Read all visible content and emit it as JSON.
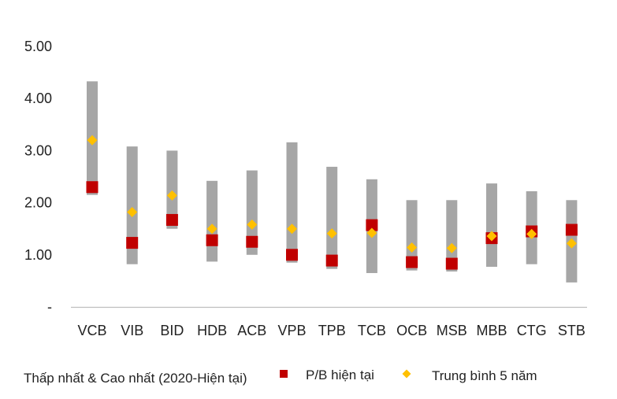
{
  "chart_data": {
    "type": "range-dot",
    "title": "",
    "xlabel": "",
    "ylabel": "",
    "ylim": [
      0,
      5
    ],
    "y_ticks": [
      0,
      1,
      2,
      3,
      4,
      5
    ],
    "y_tick_labels": [
      "-",
      "1.00",
      "2.00",
      "3.00",
      "4.00",
      "5.00"
    ],
    "categories": [
      "VCB",
      "VIB",
      "BID",
      "HDB",
      "ACB",
      "VPB",
      "TPB",
      "TCB",
      "OCB",
      "MSB",
      "MBB",
      "CTG",
      "STB"
    ],
    "series": [
      {
        "name": "Thấp nhất & Cao nhất (2020-Hiện tại)",
        "kind": "range",
        "low": [
          2.15,
          0.82,
          1.5,
          0.87,
          1.0,
          0.85,
          0.73,
          0.65,
          0.7,
          0.68,
          0.77,
          0.82,
          0.47
        ],
        "high": [
          4.33,
          3.08,
          3.0,
          2.42,
          2.62,
          3.16,
          2.69,
          2.45,
          2.05,
          2.05,
          2.37,
          2.22,
          2.05
        ]
      },
      {
        "name": "P/B hiện tại",
        "kind": "square",
        "values": [
          2.3,
          1.23,
          1.67,
          1.28,
          1.25,
          1.0,
          0.89,
          1.57,
          0.86,
          0.83,
          1.32,
          1.45,
          1.48
        ]
      },
      {
        "name": "Trung bình 5 năm",
        "kind": "diamond",
        "values": [
          3.2,
          1.82,
          2.14,
          1.5,
          1.58,
          1.5,
          1.41,
          1.42,
          1.14,
          1.13,
          1.36,
          1.4,
          1.22
        ]
      }
    ],
    "colors": {
      "range": "#a6a6a6",
      "current": "#c00000",
      "average": "#ffc000",
      "axis": "#bfbfbf",
      "text": "#222222"
    },
    "legend_position": "bottom"
  }
}
